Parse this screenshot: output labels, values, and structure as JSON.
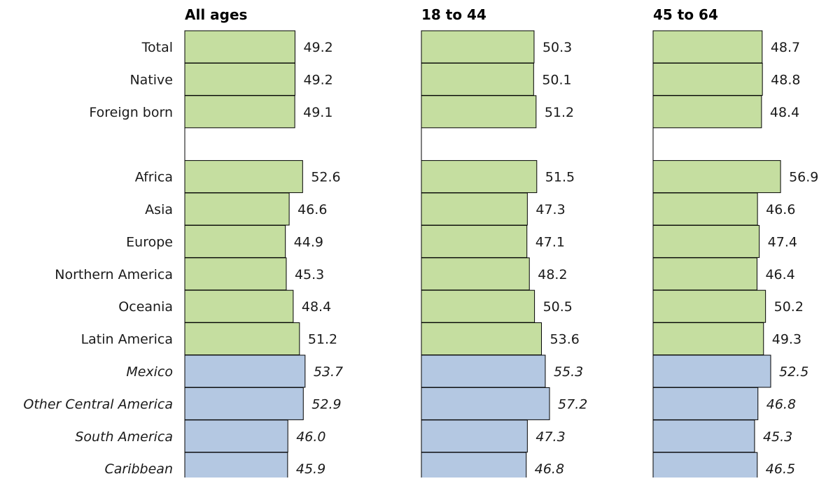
{
  "chart_data": {
    "type": "bar",
    "orientation": "horizontal",
    "categories": [
      "Total",
      "Native",
      "Foreign born",
      "",
      "Africa",
      "Asia",
      "Europe",
      "Northern America",
      "Oceania",
      "Latin America",
      "Mexico",
      "Other Central America",
      "South America",
      "Caribbean"
    ],
    "subcategory_flags": [
      false,
      false,
      false,
      false,
      false,
      false,
      false,
      false,
      false,
      false,
      true,
      true,
      true,
      true
    ],
    "colors": {
      "main": "#c5dea0",
      "sub": "#b4c8e2",
      "border": "#000000"
    },
    "xlim": [
      0,
      60
    ],
    "panels": [
      {
        "title": "All ages",
        "values": [
          49.2,
          49.2,
          49.1,
          null,
          52.6,
          46.6,
          44.9,
          45.3,
          48.4,
          51.2,
          53.7,
          52.9,
          46.0,
          45.9
        ],
        "labels": [
          "49.2",
          "49.2",
          "49.1",
          "",
          "52.6",
          "46.6",
          "44.9",
          "45.3",
          "48.4",
          "51.2",
          "53.7",
          "52.9",
          "46.0",
          "45.9"
        ]
      },
      {
        "title": "18 to 44",
        "values": [
          50.3,
          50.1,
          51.2,
          null,
          51.5,
          47.3,
          47.1,
          48.2,
          50.5,
          53.6,
          55.3,
          57.2,
          47.3,
          46.8
        ],
        "labels": [
          "50.3",
          "50.1",
          "51.2",
          "",
          "51.5",
          "47.3",
          "47.1",
          "48.2",
          "50.5",
          "53.6",
          "55.3",
          "57.2",
          "47.3",
          "46.8"
        ]
      },
      {
        "title": "45 to 64",
        "values": [
          48.7,
          48.8,
          48.4,
          null,
          56.9,
          46.6,
          47.4,
          46.4,
          50.2,
          49.3,
          52.5,
          46.8,
          45.3,
          46.5
        ],
        "labels": [
          "48.7",
          "48.8",
          "48.4",
          "",
          "56.9",
          "46.6",
          "47.4",
          "46.4",
          "50.2",
          "49.3",
          "52.5",
          "46.8",
          "45.3",
          "46.5"
        ]
      }
    ]
  }
}
